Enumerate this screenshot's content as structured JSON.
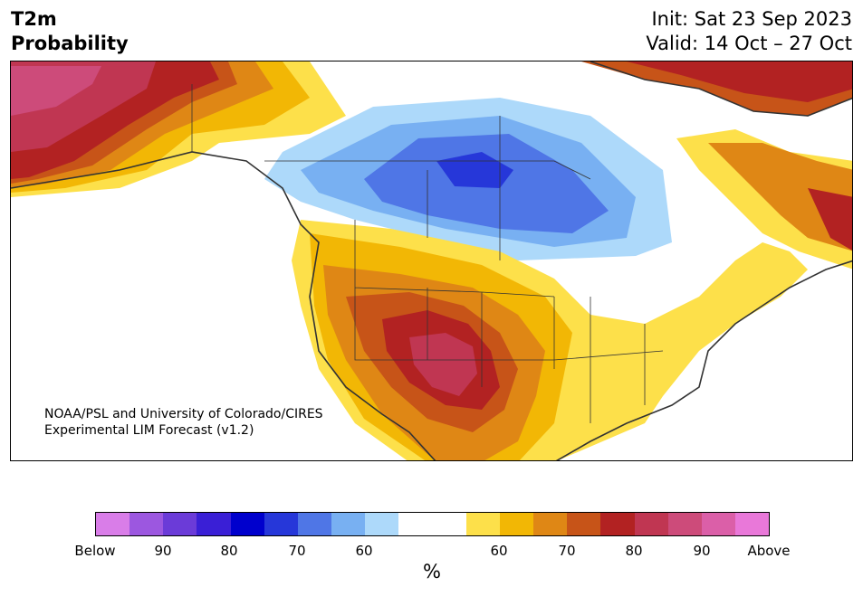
{
  "title": {
    "line1": "T2m",
    "line2": "Probability"
  },
  "header_right": {
    "init": "Init: Sat 23 Sep 2023",
    "valid": "Valid: 14 Oct – 27 Oct"
  },
  "credit": {
    "line1": "NOAA/PSL and University of Colorado/CIRES",
    "line2": "Experimental LIM Forecast (v1.2)"
  },
  "colorbar": {
    "colors": [
      "#d97de8",
      "#9c57e0",
      "#6b3bd8",
      "#3a1fd6",
      "#0000cd",
      "#2637d9",
      "#4f76e6",
      "#78b0f2",
      "#add9fa",
      "#ffffff",
      "#ffffff",
      "#fde04a",
      "#f2b705",
      "#df8715",
      "#c75418",
      "#b22222",
      "#c03652",
      "#cd4b7a",
      "#db5fa8",
      "#e978d9"
    ],
    "tick_labels": [
      "Below",
      "90",
      "80",
      "70",
      "60",
      "60",
      "70",
      "80",
      "90",
      "Above"
    ],
    "units": "%"
  },
  "map_layers": {
    "above_60": "#fde04a",
    "above_65": "#f2b705",
    "above_70": "#df8715",
    "above_75": "#c75418",
    "above_80": "#b22222",
    "above_85": "#c03652",
    "above_90": "#cd4b7a",
    "below_60": "#add9fa",
    "below_65": "#78b0f2",
    "below_70": "#4f76e6",
    "below_75": "#2637d9"
  }
}
